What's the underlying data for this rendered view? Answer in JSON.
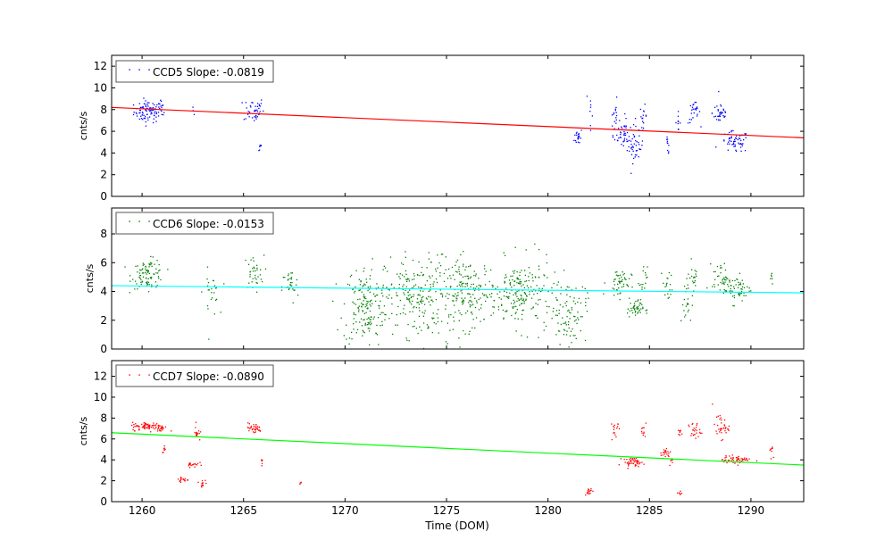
{
  "chart_data": {
    "type": "scatter",
    "xlabel": "Time (DOM)",
    "xlim": [
      1258.5,
      1292.6
    ],
    "xticks": [
      1260,
      1265,
      1270,
      1275,
      1280,
      1285,
      1290
    ],
    "xtick_labels": [
      "1260",
      "1265",
      "1270",
      "1275",
      "1280",
      "1285",
      "1290"
    ],
    "panels": [
      {
        "name": "CCD5",
        "ylabel": "cnts/s",
        "ylim": [
          0,
          13
        ],
        "yticks": [
          0,
          2,
          4,
          6,
          8,
          10,
          12
        ],
        "ytick_labels": [
          "0",
          "2",
          "4",
          "6",
          "8",
          "10",
          "12"
        ],
        "legend": "CCD5 Slope: -0.0819",
        "point_color": "#0000ff",
        "line_color": "#ff0000",
        "fit_line": {
          "x": [
            1258.5,
            1292.6
          ],
          "y": [
            8.2,
            5.4
          ]
        },
        "clusters": [
          {
            "x": 1260.3,
            "y": 7.8,
            "sx": 0.35,
            "sy": 0.5,
            "n": 90
          },
          {
            "x": 1261.0,
            "y": 8.0,
            "sx": 0.08,
            "sy": 0.4,
            "n": 10
          },
          {
            "x": 1262.5,
            "y": 7.8,
            "sx": 0.05,
            "sy": 0.3,
            "n": 3
          },
          {
            "x": 1265.5,
            "y": 8.0,
            "sx": 0.25,
            "sy": 0.6,
            "n": 40
          },
          {
            "x": 1265.8,
            "y": 4.6,
            "sx": 0.05,
            "sy": 0.3,
            "n": 6
          },
          {
            "x": 1281.5,
            "y": 5.5,
            "sx": 0.1,
            "sy": 0.4,
            "n": 20
          },
          {
            "x": 1282.1,
            "y": 7.5,
            "sx": 0.05,
            "sy": 1.5,
            "n": 8
          },
          {
            "x": 1283.3,
            "y": 7.3,
            "sx": 0.1,
            "sy": 0.8,
            "n": 20
          },
          {
            "x": 1283.8,
            "y": 5.8,
            "sx": 0.25,
            "sy": 0.8,
            "n": 45
          },
          {
            "x": 1284.3,
            "y": 4.5,
            "sx": 0.2,
            "sy": 0.7,
            "n": 35
          },
          {
            "x": 1284.7,
            "y": 7.4,
            "sx": 0.08,
            "sy": 0.5,
            "n": 15
          },
          {
            "x": 1285.9,
            "y": 4.7,
            "sx": 0.05,
            "sy": 0.4,
            "n": 10
          },
          {
            "x": 1286.4,
            "y": 6.9,
            "sx": 0.06,
            "sy": 0.4,
            "n": 10
          },
          {
            "x": 1287.2,
            "y": 7.7,
            "sx": 0.15,
            "sy": 0.5,
            "n": 25
          },
          {
            "x": 1288.5,
            "y": 7.7,
            "sx": 0.2,
            "sy": 0.6,
            "n": 35
          },
          {
            "x": 1289.2,
            "y": 5.0,
            "sx": 0.35,
            "sy": 0.5,
            "n": 60
          }
        ]
      },
      {
        "name": "CCD6",
        "ylabel": "cnts/s",
        "ylim": [
          0,
          9.8
        ],
        "yticks": [
          0,
          2,
          4,
          6,
          8
        ],
        "ytick_labels": [
          "0",
          "2",
          "4",
          "6",
          "8"
        ],
        "legend": "CCD6 Slope: -0.0153",
        "point_color": "#008000",
        "line_color": "#00ffff",
        "fit_line": {
          "x": [
            1258.5,
            1292.6
          ],
          "y": [
            4.4,
            3.9
          ]
        },
        "clusters": [
          {
            "x": 1260.3,
            "y": 5.2,
            "sx": 0.4,
            "sy": 0.5,
            "n": 90
          },
          {
            "x": 1263.4,
            "y": 3.9,
            "sx": 0.2,
            "sy": 0.8,
            "n": 25
          },
          {
            "x": 1265.5,
            "y": 5.3,
            "sx": 0.25,
            "sy": 0.6,
            "n": 35
          },
          {
            "x": 1267.3,
            "y": 4.3,
            "sx": 0.2,
            "sy": 0.6,
            "n": 30
          },
          {
            "x": 1271.0,
            "y": 3.0,
            "sx": 0.55,
            "sy": 1.4,
            "n": 170
          },
          {
            "x": 1273.5,
            "y": 3.7,
            "sx": 0.75,
            "sy": 1.4,
            "n": 200
          },
          {
            "x": 1276.0,
            "y": 3.9,
            "sx": 0.75,
            "sy": 1.2,
            "n": 190
          },
          {
            "x": 1278.7,
            "y": 3.8,
            "sx": 0.75,
            "sy": 1.2,
            "n": 190
          },
          {
            "x": 1281.0,
            "y": 2.6,
            "sx": 0.45,
            "sy": 1.1,
            "n": 90
          },
          {
            "x": 1283.5,
            "y": 4.6,
            "sx": 0.3,
            "sy": 0.5,
            "n": 50
          },
          {
            "x": 1284.3,
            "y": 2.8,
            "sx": 0.2,
            "sy": 0.3,
            "n": 45
          },
          {
            "x": 1284.7,
            "y": 4.7,
            "sx": 0.1,
            "sy": 0.5,
            "n": 15
          },
          {
            "x": 1285.9,
            "y": 4.3,
            "sx": 0.12,
            "sy": 0.6,
            "n": 18
          },
          {
            "x": 1286.8,
            "y": 3.1,
            "sx": 0.15,
            "sy": 0.8,
            "n": 20
          },
          {
            "x": 1287.2,
            "y": 5.0,
            "sx": 0.15,
            "sy": 0.6,
            "n": 20
          },
          {
            "x": 1288.5,
            "y": 5.0,
            "sx": 0.2,
            "sy": 0.5,
            "n": 35
          },
          {
            "x": 1289.3,
            "y": 4.2,
            "sx": 0.35,
            "sy": 0.5,
            "n": 60
          },
          {
            "x": 1291.0,
            "y": 5.1,
            "sx": 0.05,
            "sy": 0.3,
            "n": 6
          }
        ]
      },
      {
        "name": "CCD7",
        "ylabel": "cnts/s",
        "ylim": [
          0,
          13.5
        ],
        "yticks": [
          0,
          2,
          4,
          6,
          8,
          10,
          12
        ],
        "ytick_labels": [
          "0",
          "2",
          "4",
          "6",
          "8",
          "10",
          "12"
        ],
        "legend": "CCD7 Slope: -0.0890",
        "point_color": "#ff0000",
        "line_color": "#00ff00",
        "fit_line": {
          "x": [
            1258.5,
            1292.6
          ],
          "y": [
            6.6,
            3.5
          ]
        },
        "clusters": [
          {
            "x": 1260.3,
            "y": 7.2,
            "sx": 0.4,
            "sy": 0.2,
            "n": 80
          },
          {
            "x": 1260.9,
            "y": 7.1,
            "sx": 0.1,
            "sy": 0.2,
            "n": 15
          },
          {
            "x": 1261.1,
            "y": 5.0,
            "sx": 0.05,
            "sy": 0.2,
            "n": 8
          },
          {
            "x": 1262.0,
            "y": 2.1,
            "sx": 0.15,
            "sy": 0.15,
            "n": 20
          },
          {
            "x": 1262.5,
            "y": 3.6,
            "sx": 0.15,
            "sy": 0.15,
            "n": 20
          },
          {
            "x": 1262.7,
            "y": 6.6,
            "sx": 0.08,
            "sy": 0.4,
            "n": 15
          },
          {
            "x": 1263.0,
            "y": 1.8,
            "sx": 0.1,
            "sy": 0.15,
            "n": 12
          },
          {
            "x": 1265.5,
            "y": 7.0,
            "sx": 0.2,
            "sy": 0.25,
            "n": 35
          },
          {
            "x": 1265.9,
            "y": 3.9,
            "sx": 0.05,
            "sy": 0.3,
            "n": 6
          },
          {
            "x": 1267.8,
            "y": 1.8,
            "sx": 0.03,
            "sy": 0.1,
            "n": 4
          },
          {
            "x": 1282.0,
            "y": 1.0,
            "sx": 0.1,
            "sy": 0.15,
            "n": 15
          },
          {
            "x": 1283.3,
            "y": 7.0,
            "sx": 0.08,
            "sy": 0.6,
            "n": 15
          },
          {
            "x": 1284.2,
            "y": 3.8,
            "sx": 0.25,
            "sy": 0.2,
            "n": 45
          },
          {
            "x": 1284.7,
            "y": 6.7,
            "sx": 0.08,
            "sy": 0.3,
            "n": 10
          },
          {
            "x": 1285.8,
            "y": 4.7,
            "sx": 0.12,
            "sy": 0.25,
            "n": 20
          },
          {
            "x": 1286.1,
            "y": 3.8,
            "sx": 0.05,
            "sy": 0.2,
            "n": 6
          },
          {
            "x": 1286.5,
            "y": 0.8,
            "sx": 0.05,
            "sy": 0.1,
            "n": 8
          },
          {
            "x": 1286.5,
            "y": 6.6,
            "sx": 0.06,
            "sy": 0.2,
            "n": 8
          },
          {
            "x": 1287.2,
            "y": 6.8,
            "sx": 0.15,
            "sy": 0.4,
            "n": 25
          },
          {
            "x": 1288.5,
            "y": 7.2,
            "sx": 0.2,
            "sy": 0.6,
            "n": 35
          },
          {
            "x": 1289.3,
            "y": 4.0,
            "sx": 0.35,
            "sy": 0.2,
            "n": 55
          },
          {
            "x": 1291.0,
            "y": 5.0,
            "sx": 0.05,
            "sy": 0.3,
            "n": 8
          }
        ]
      }
    ]
  }
}
